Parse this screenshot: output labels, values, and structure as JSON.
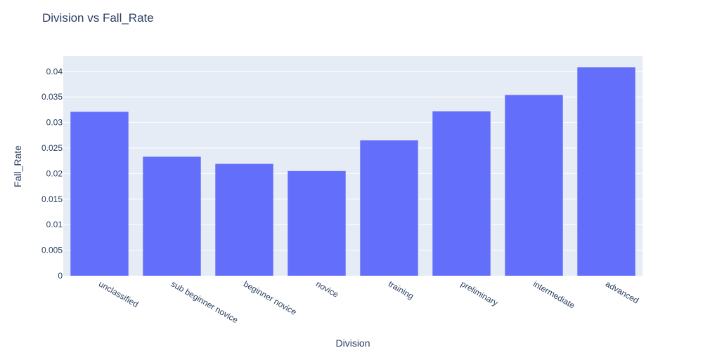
{
  "chart_data": {
    "type": "bar",
    "title": "Division vs Fall_Rate",
    "xlabel": "Division",
    "ylabel": "Fall_Rate",
    "categories": [
      "unclassified",
      "sub beginner novice",
      "beginner novice",
      "novice",
      "training",
      "preliminary",
      "intermediate",
      "advanced"
    ],
    "values": [
      0.0321,
      0.0233,
      0.0219,
      0.0205,
      0.0265,
      0.0322,
      0.0354,
      0.0408
    ],
    "ylim": [
      0,
      0.043
    ],
    "yticks": [
      0,
      0.005,
      0.01,
      0.015,
      0.02,
      0.025,
      0.03,
      0.035,
      0.04
    ],
    "ytick_labels": [
      "0",
      "0.005",
      "0.01",
      "0.015",
      "0.02",
      "0.025",
      "0.03",
      "0.035",
      "0.04"
    ],
    "grid": true,
    "colors": {
      "bar": "#636efa",
      "plot_bg": "#e5ecf6"
    }
  }
}
